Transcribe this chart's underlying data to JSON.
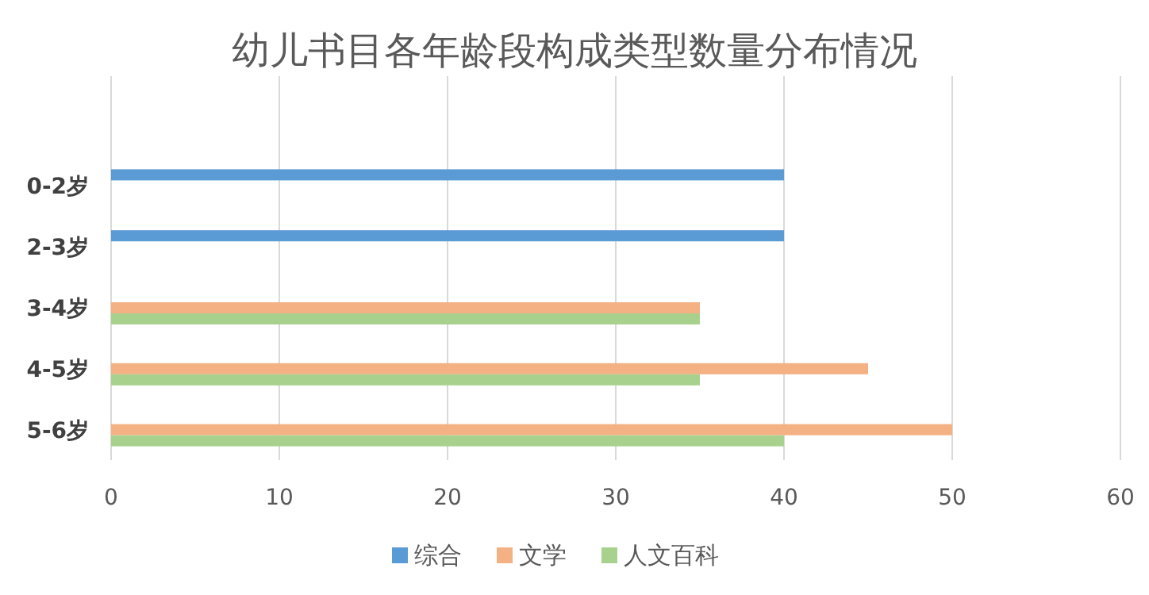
{
  "chart_data": {
    "type": "bar",
    "orientation": "horizontal",
    "title": "幼儿书目各年龄段构成类型数量分布情况",
    "categories": [
      "0-2岁",
      "2-3岁",
      "3-4岁",
      "4-5岁",
      "5-6岁"
    ],
    "series": [
      {
        "name": "综合",
        "color": "#5b9bd5",
        "values": [
          40,
          40,
          null,
          null,
          null
        ]
      },
      {
        "name": "文学",
        "color": "#f4b183",
        "values": [
          null,
          null,
          35,
          45,
          50
        ]
      },
      {
        "name": "人文百科",
        "color": "#a9d18e",
        "values": [
          null,
          null,
          35,
          35,
          40
        ]
      }
    ],
    "xlim": [
      0,
      60
    ],
    "xticks": [
      0,
      10,
      20,
      30,
      40,
      50,
      60
    ],
    "grid": "x",
    "legend": "bottom"
  }
}
